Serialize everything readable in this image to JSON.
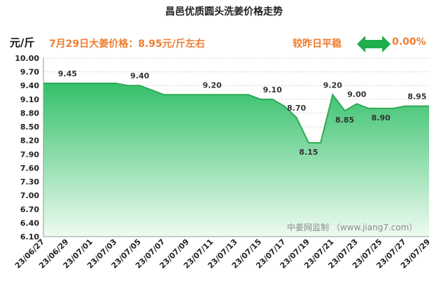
{
  "chart_data": {
    "type": "area",
    "title": "昌邑优质圆头洗姜价格走势",
    "ylabel": "元/斤",
    "xlabel": "",
    "ylim": [
      6.1,
      10.0
    ],
    "yticks": [
      "10.00",
      "9.70",
      "9.40",
      "9.10",
      "8.80",
      "8.50",
      "8.20",
      "7.90",
      "7.60",
      "7.30",
      "7.00",
      "6.70",
      "6.40",
      "6.10"
    ],
    "x": [
      "23/06/27",
      "23/06/28",
      "23/06/29",
      "23/06/30",
      "23/07/01",
      "23/07/02",
      "23/07/03",
      "23/07/04",
      "23/07/05",
      "23/07/06",
      "23/07/07",
      "23/07/08",
      "23/07/09",
      "23/07/10",
      "23/07/11",
      "23/07/12",
      "23/07/13",
      "23/07/14",
      "23/07/15",
      "23/07/16",
      "23/07/17",
      "23/07/18",
      "23/07/19",
      "23/07/20",
      "23/07/21",
      "23/07/22",
      "23/07/23",
      "23/07/24",
      "23/07/25",
      "23/07/26",
      "23/07/27",
      "23/07/28",
      "23/07/29"
    ],
    "x_tick_labels": [
      "23/06/27",
      "23/06/29",
      "23/07/01",
      "23/07/03",
      "23/07/05",
      "23/07/07",
      "23/07/09",
      "23/07/11",
      "23/07/13",
      "23/07/15",
      "23/07/17",
      "23/07/19",
      "23/07/21",
      "23/07/23",
      "23/07/25",
      "23/07/27",
      "23/07/29"
    ],
    "values": [
      9.45,
      9.45,
      9.45,
      9.45,
      9.45,
      9.45,
      9.45,
      9.4,
      9.4,
      9.3,
      9.2,
      9.2,
      9.2,
      9.2,
      9.2,
      9.2,
      9.2,
      9.2,
      9.1,
      9.1,
      8.95,
      8.7,
      8.15,
      8.15,
      9.2,
      8.85,
      9.0,
      8.9,
      8.9,
      8.9,
      8.95,
      8.95,
      8.95
    ],
    "data_labels": [
      {
        "index": 2,
        "text": "9.45"
      },
      {
        "index": 8,
        "text": "9.40"
      },
      {
        "index": 14,
        "text": "9.20"
      },
      {
        "index": 19,
        "text": "9.10"
      },
      {
        "index": 21,
        "text": "8.70"
      },
      {
        "index": 22,
        "text": "8.15"
      },
      {
        "index": 24,
        "text": "9.20"
      },
      {
        "index": 25,
        "text": "8.85"
      },
      {
        "index": 26,
        "text": "9.00"
      },
      {
        "index": 28,
        "text": "8.90"
      },
      {
        "index": 31,
        "text": "8.95"
      }
    ],
    "grid": true,
    "colors": {
      "line": "#2eaa55",
      "fill_top": "#34c06a",
      "fill_bottom": "#eefbf1",
      "accent": "#ed7d31"
    }
  },
  "header": {
    "unit": "元/斤",
    "price_text": "7月29日大姜价格：8.95元/斤左右",
    "compare_text": "较昨日平稳",
    "compare_icon": "double-arrow-icon",
    "change_text": "0.00%"
  },
  "watermark": "中姜网监制 （www.jiang7.com）"
}
